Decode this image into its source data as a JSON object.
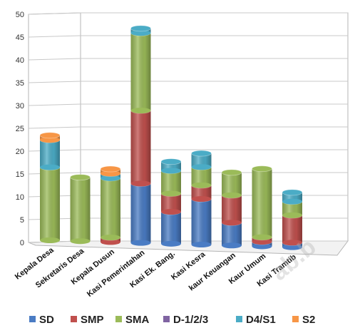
{
  "chart_data": {
    "type": "bar",
    "stacked": true,
    "style": "3d-cylinder",
    "title": "",
    "xlabel": "",
    "ylabel": "",
    "ylim": [
      0,
      50
    ],
    "yticks": [
      0,
      5,
      10,
      15,
      20,
      25,
      30,
      35,
      40,
      45,
      50
    ],
    "grid": true,
    "legend_position": "bottom",
    "categories": [
      "Kepala Desa",
      "Sekretaris Desa",
      "Kepala Dusun",
      "Kasi Pemerintahan",
      "Kasi Ek. Bang.",
      "Kasi Kesra",
      "kaur Keuangan",
      "Kaur Umum",
      "Kasi Tramtib"
    ],
    "series": [
      {
        "name": "SD",
        "color": "#4a7cc4",
        "values": [
          0,
          0,
          0,
          13,
          7,
          10,
          5,
          1,
          1
        ]
      },
      {
        "name": "SMP",
        "color": "#c0504d",
        "values": [
          0,
          0,
          1,
          16,
          4,
          3,
          6,
          1,
          6
        ]
      },
      {
        "name": "SMA",
        "color": "#9bbb59",
        "values": [
          16,
          14,
          13,
          17,
          5,
          4,
          5,
          15,
          3
        ]
      },
      {
        "name": "D-1/2/3",
        "color": "#8064a2",
        "values": [
          0,
          0,
          0,
          0,
          0,
          0,
          0,
          0,
          0
        ]
      },
      {
        "name": "D4/S1",
        "color": "#4bacc6",
        "values": [
          6,
          0,
          1,
          1,
          2,
          3,
          0,
          0,
          2
        ]
      },
      {
        "name": "S2",
        "color": "#f79646",
        "values": [
          1,
          0,
          1,
          0,
          0,
          0,
          0,
          0,
          0
        ]
      }
    ]
  },
  "watermark": "ab.b"
}
